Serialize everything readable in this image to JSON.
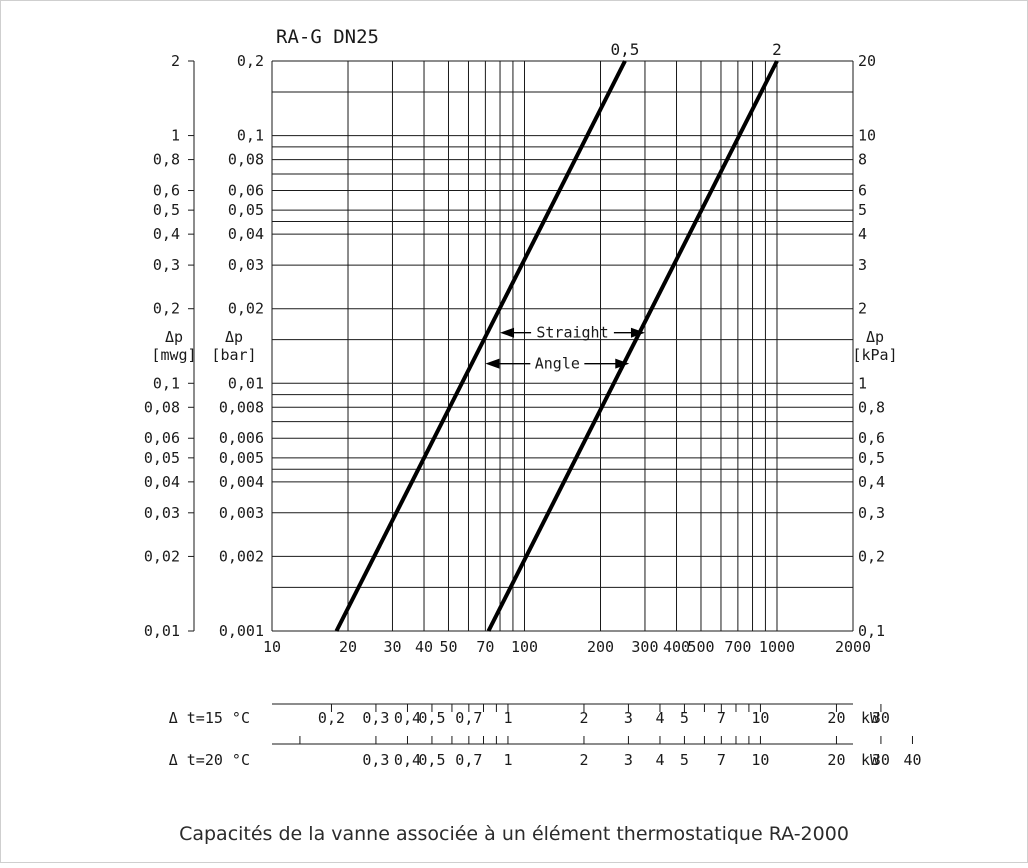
{
  "chart_data": {
    "type": "line",
    "title": "RA-G DN25",
    "caption": "Capacités de la vanne associée à un élément thermostatique RA-2000",
    "x_scale": "log",
    "y_scale": "log",
    "grid": true,
    "xlim": [
      10,
      2000
    ],
    "ylim": [
      0.001,
      0.2
    ],
    "x_ticks": [
      10,
      20,
      30,
      40,
      50,
      70,
      100,
      200,
      300,
      400,
      500,
      700,
      1000,
      2000
    ],
    "x_tick_labels": [
      "10",
      "20",
      "30",
      "40",
      "50",
      "70",
      "100",
      "200",
      "300",
      "400",
      "500",
      "700",
      "1000",
      "2000"
    ],
    "y_axis_left_mwg": {
      "label": [
        "Δp",
        "[mwg]"
      ],
      "ticks": [
        {
          "v": 0.001,
          "t": "0,01"
        },
        {
          "v": 0.002,
          "t": "0,02"
        },
        {
          "v": 0.003,
          "t": "0,03"
        },
        {
          "v": 0.004,
          "t": "0,04"
        },
        {
          "v": 0.005,
          "t": "0,05"
        },
        {
          "v": 0.006,
          "t": "0,06"
        },
        {
          "v": 0.008,
          "t": "0,08"
        },
        {
          "v": 0.01,
          "t": "0,1"
        },
        {
          "v": 0.02,
          "t": "0,2"
        },
        {
          "v": 0.03,
          "t": "0,3"
        },
        {
          "v": 0.04,
          "t": "0,4"
        },
        {
          "v": 0.05,
          "t": "0,5"
        },
        {
          "v": 0.06,
          "t": "0,6"
        },
        {
          "v": 0.08,
          "t": "0,8"
        },
        {
          "v": 0.1,
          "t": "1"
        },
        {
          "v": 0.2,
          "t": "2"
        }
      ]
    },
    "y_axis_bar": {
      "label": [
        "Δp",
        "[bar]"
      ],
      "ticks": [
        {
          "v": 0.001,
          "t": "0,001"
        },
        {
          "v": 0.002,
          "t": "0,002"
        },
        {
          "v": 0.003,
          "t": "0,003"
        },
        {
          "v": 0.004,
          "t": "0,004"
        },
        {
          "v": 0.005,
          "t": "0,005"
        },
        {
          "v": 0.006,
          "t": "0,006"
        },
        {
          "v": 0.008,
          "t": "0,008"
        },
        {
          "v": 0.01,
          "t": "0,01"
        },
        {
          "v": 0.02,
          "t": "0,02"
        },
        {
          "v": 0.03,
          "t": "0,03"
        },
        {
          "v": 0.04,
          "t": "0,04"
        },
        {
          "v": 0.05,
          "t": "0,05"
        },
        {
          "v": 0.06,
          "t": "0,06"
        },
        {
          "v": 0.08,
          "t": "0,08"
        },
        {
          "v": 0.1,
          "t": "0,1"
        },
        {
          "v": 0.2,
          "t": "0,2"
        }
      ]
    },
    "y_axis_right_kpa": {
      "label": [
        "Δp",
        "[kPa]"
      ],
      "ticks": [
        {
          "v": 0.001,
          "t": "0,1"
        },
        {
          "v": 0.002,
          "t": "0,2"
        },
        {
          "v": 0.003,
          "t": "0,3"
        },
        {
          "v": 0.004,
          "t": "0,4"
        },
        {
          "v": 0.005,
          "t": "0,5"
        },
        {
          "v": 0.006,
          "t": "0,6"
        },
        {
          "v": 0.008,
          "t": "0,8"
        },
        {
          "v": 0.01,
          "t": "1"
        },
        {
          "v": 0.02,
          "t": "2"
        },
        {
          "v": 0.03,
          "t": "3"
        },
        {
          "v": 0.04,
          "t": "4"
        },
        {
          "v": 0.05,
          "t": "5"
        },
        {
          "v": 0.06,
          "t": "6"
        },
        {
          "v": 0.08,
          "t": "8"
        },
        {
          "v": 0.1,
          "t": "10"
        },
        {
          "v": 0.2,
          "t": "20"
        }
      ]
    },
    "series": [
      {
        "name": "0,5",
        "x": [
          18,
          250
        ],
        "y": [
          0.001,
          0.2
        ]
      },
      {
        "name": "2",
        "x": [
          72,
          1000
        ],
        "y": [
          0.001,
          0.2
        ]
      }
    ],
    "annotations": [
      {
        "text": "Straight",
        "x_from": 80,
        "x_to": 300,
        "y": 0.016
      },
      {
        "text": "Angle",
        "x_from": 70,
        "x_to": 260,
        "y": 0.012
      }
    ],
    "kw_scales": [
      {
        "label": "Δ t=15 °C",
        "unit": "kW",
        "ticks": [
          {
            "x": 17.2,
            "t": "0,2"
          },
          {
            "x": 25.8,
            "t": "0,3"
          },
          {
            "x": 34.4,
            "t": "0,4"
          },
          {
            "x": 43,
            "t": "0,5"
          },
          {
            "x": 51.6,
            "t": ""
          },
          {
            "x": 60.2,
            "t": "0,7"
          },
          {
            "x": 68.8,
            "t": ""
          },
          {
            "x": 77.4,
            "t": ""
          },
          {
            "x": 86,
            "t": "1"
          },
          {
            "x": 172,
            "t": "2"
          },
          {
            "x": 258,
            "t": "3"
          },
          {
            "x": 344,
            "t": "4"
          },
          {
            "x": 430,
            "t": "5"
          },
          {
            "x": 516,
            "t": ""
          },
          {
            "x": 602,
            "t": "7"
          },
          {
            "x": 688,
            "t": ""
          },
          {
            "x": 774,
            "t": ""
          },
          {
            "x": 860,
            "t": "10"
          },
          {
            "x": 1720,
            "t": "20"
          },
          {
            "x": 2580,
            "t": "30"
          }
        ]
      },
      {
        "label": "Δ t=20 °C",
        "unit": "kW",
        "ticks": [
          {
            "x": 12.9,
            "t": ""
          },
          {
            "x": 25.8,
            "t": "0,3"
          },
          {
            "x": 34.4,
            "t": "0,4"
          },
          {
            "x": 43,
            "t": "0,5"
          },
          {
            "x": 51.6,
            "t": ""
          },
          {
            "x": 60.2,
            "t": "0,7"
          },
          {
            "x": 68.8,
            "t": ""
          },
          {
            "x": 77.4,
            "t": ""
          },
          {
            "x": 86,
            "t": "1"
          },
          {
            "x": 172,
            "t": "2"
          },
          {
            "x": 258,
            "t": "3"
          },
          {
            "x": 344,
            "t": "4"
          },
          {
            "x": 430,
            "t": "5"
          },
          {
            "x": 516,
            "t": ""
          },
          {
            "x": 602,
            "t": "7"
          },
          {
            "x": 688,
            "t": ""
          },
          {
            "x": 774,
            "t": ""
          },
          {
            "x": 860,
            "t": "10"
          },
          {
            "x": 1720,
            "t": "20"
          },
          {
            "x": 2580,
            "t": "30"
          },
          {
            "x": 3440,
            "t": "40"
          }
        ]
      }
    ]
  }
}
